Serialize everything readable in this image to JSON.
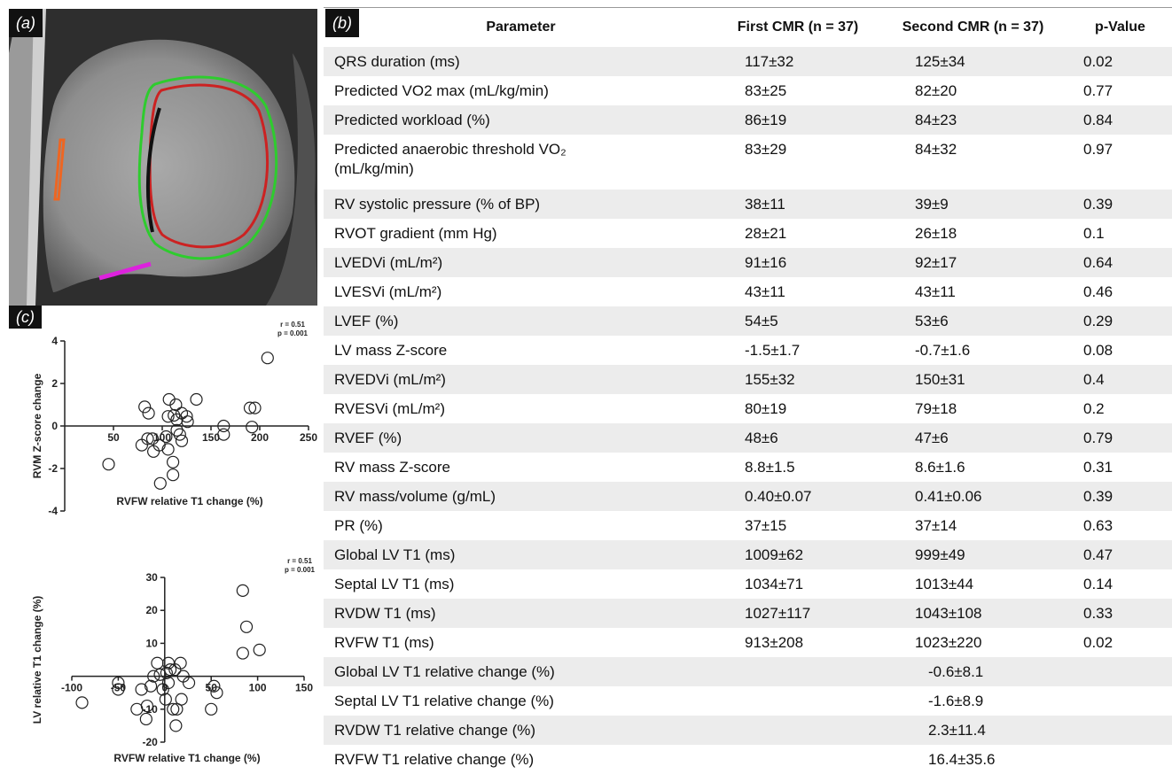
{
  "panel_a": {
    "label": "(a)"
  },
  "panel_b": {
    "label": "(b)",
    "table": {
      "header": [
        "Parameter",
        "First CMR (n = 37)",
        "Second CMR (n = 37)",
        "p-Value"
      ],
      "rows": [
        {
          "parameter": "QRS duration (ms)",
          "first": "117±32",
          "second": "125±34",
          "p": "0.02"
        },
        {
          "parameter": "Predicted VO2 max (mL/kg/min)",
          "first": "83±25",
          "second": "82±20",
          "p": "0.77"
        },
        {
          "parameter": "Predicted workload (%)",
          "first": "86±19",
          "second": "84±23",
          "p": "0.84"
        },
        {
          "parameter": "Predicted anaerobic threshold VO₂ (mL/kg/min)",
          "first": "83±29",
          "second": "84±32",
          "p": "0.97"
        },
        {
          "parameter": "RV systolic pressure (% of BP)",
          "first": "38±11",
          "second": "39±9",
          "p": "0.39"
        },
        {
          "parameter": "RVOT gradient (mm Hg)",
          "first": "28±21",
          "second": "26±18",
          "p": "0.1"
        },
        {
          "parameter": "LVEDVi (mL/m²)",
          "first": "91±16",
          "second": "92±17",
          "p": "0.64"
        },
        {
          "parameter": "LVESVi (mL/m²)",
          "first": "43±11",
          "second": "43±11",
          "p": "0.46"
        },
        {
          "parameter": "LVEF (%)",
          "first": "54±5",
          "second": "53±6",
          "p": "0.29"
        },
        {
          "parameter": "LV mass Z-score",
          "first": "-1.5±1.7",
          "second": "-0.7±1.6",
          "p": "0.08"
        },
        {
          "parameter": "RVEDVi (mL/m²)",
          "first": "155±32",
          "second": "150±31",
          "p": "0.4"
        },
        {
          "parameter": "RVESVi (mL/m²)",
          "first": "80±19",
          "second": "79±18",
          "p": "0.2"
        },
        {
          "parameter": "RVEF (%)",
          "first": "48±6",
          "second": "47±6",
          "p": "0.79"
        },
        {
          "parameter": "RV mass Z-score",
          "first": "8.8±1.5",
          "second": "8.6±1.6",
          "p": "0.31"
        },
        {
          "parameter": "RV mass/volume (g/mL)",
          "first": "0.40±0.07",
          "second": "0.41±0.06",
          "p": "0.39"
        },
        {
          "parameter": "PR (%)",
          "first": "37±15",
          "second": "37±14",
          "p": "0.63"
        },
        {
          "parameter": "Global LV T1 (ms)",
          "first": "1009±62",
          "second": "999±49",
          "p": "0.47"
        },
        {
          "parameter": "Septal LV T1 (ms)",
          "first": "1034±71",
          "second": "1013±44",
          "p": "0.14"
        },
        {
          "parameter": "RVDW T1 (ms)",
          "first": "1027±117",
          "second": "1043±108",
          "p": "0.33"
        },
        {
          "parameter": "RVFW T1 (ms)",
          "first": "913±208",
          "second": "1023±220",
          "p": "0.02"
        },
        {
          "parameter": "Global LV T1 relative change (%)",
          "change": "-0.6±8.1"
        },
        {
          "parameter": "Septal LV T1 relative change (%)",
          "change": "-1.6±8.9"
        },
        {
          "parameter": "RVDW T1 relative change (%)",
          "change": "2.3±11.4"
        },
        {
          "parameter": "RVFW T1 relative change (%)",
          "change": "16.4±35.6"
        }
      ]
    }
  },
  "panel_c": {
    "label": "(c)"
  },
  "chart_data": [
    {
      "type": "scatter",
      "xlabel": "RVFW relative T1 change (%)",
      "ylabel": "RVM Z-score change",
      "annotations": [
        "r = 0.51",
        "p = 0.001"
      ],
      "x": [
        208,
        82,
        86,
        107,
        135,
        195,
        190,
        163,
        163,
        45,
        85,
        90,
        91,
        97,
        104,
        106,
        111,
        98,
        111,
        115,
        120,
        125,
        126,
        115,
        112,
        114,
        118,
        120,
        192,
        79,
        106
      ],
      "y": [
        3.2,
        0.9,
        0.6,
        1.25,
        1.25,
        0.85,
        0.85,
        0,
        -0.4,
        -1.8,
        -0.6,
        -0.6,
        -1.2,
        -0.9,
        -0.5,
        -1.1,
        -1.7,
        -2.7,
        -2.3,
        0.3,
        0.6,
        0.45,
        0.2,
        -0.2,
        0.5,
        1.0,
        -0.4,
        -0.7,
        -0.05,
        -0.9,
        0.45
      ],
      "xlim": [
        0,
        250
      ],
      "ylim": [
        -4,
        4
      ],
      "xticks": [
        50,
        100,
        150,
        200,
        250
      ],
      "yticks": [
        -4,
        -2,
        0,
        2,
        4
      ]
    },
    {
      "type": "scatter",
      "xlabel": "RVFW relative T1 change (%)",
      "ylabel": "LV relative T1 change (%)",
      "annotations": [
        "r = 0.51",
        "p = 0.001"
      ],
      "x": [
        84,
        88,
        84,
        102,
        -89,
        -50,
        -50,
        -25,
        -19,
        -20,
        -15,
        -8,
        -2,
        2,
        4,
        6,
        4,
        1,
        9,
        12,
        13,
        18,
        26,
        20,
        17,
        11,
        53,
        56,
        50,
        -30,
        -5,
        -12
      ],
      "y": [
        26,
        15,
        7,
        8,
        -8,
        -2,
        -4,
        -4,
        -9,
        -13,
        -3,
        4,
        -4,
        1,
        4,
        2,
        -2,
        -7,
        -10,
        -15,
        -10,
        -7,
        -2,
        0,
        4,
        2,
        -3,
        -5,
        -10,
        -10,
        0.5,
        0
      ],
      "xlim": [
        -100,
        150
      ],
      "ylim": [
        -20,
        30
      ],
      "xticks": [
        -100,
        -50,
        0,
        50,
        100,
        150
      ],
      "yticks": [
        -20,
        -10,
        10,
        20,
        30
      ]
    }
  ]
}
